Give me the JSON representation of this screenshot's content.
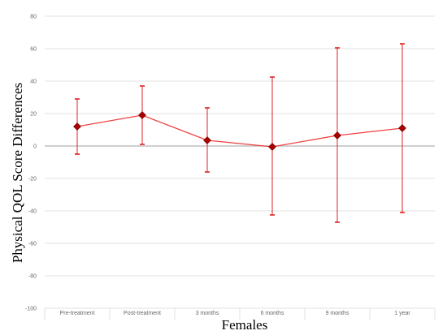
{
  "chart_data": {
    "type": "line",
    "xlabel": "Females",
    "ylabel": "Physical  QOL Score Differences",
    "ylim": [
      -100,
      80
    ],
    "yticks": [
      "-100",
      "-80",
      "-60",
      "-40",
      "-20",
      "0",
      "20",
      "40",
      "60",
      "80"
    ],
    "categories": [
      "Pre-treatment",
      "Post-treatment",
      "3 months",
      "6 months",
      "9 months",
      "1 year"
    ],
    "series": [
      {
        "values": [
          12,
          19,
          3.5,
          -0.5,
          6.5,
          11
        ],
        "error_low": [
          -5,
          1,
          -16,
          -42.5,
          -47,
          -41
        ],
        "error_high": [
          29,
          37,
          23.5,
          42.5,
          60.5,
          63
        ]
      }
    ],
    "grid": "horizontal",
    "colors": {
      "line": "#f04040",
      "marker": "#a80000",
      "error_bar": "#e02020",
      "grid": "#d9d9d9",
      "zero_line": "#bfbfbf"
    }
  }
}
